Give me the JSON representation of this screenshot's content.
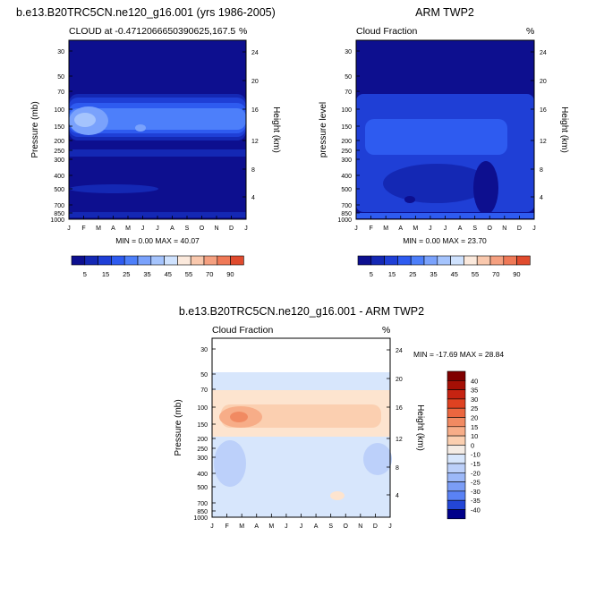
{
  "colors": {
    "frame": "#000000",
    "blue_scale": [
      "#0d0f8f",
      "#1428b4",
      "#1f3fd6",
      "#2e5bf0",
      "#4d7ffa",
      "#7aa2fc",
      "#a5c4fd",
      "#cfe2fe",
      "#fbe9dc",
      "#f9c8ad",
      "#f5a080",
      "#ef7957",
      "#e04b2e",
      "#b82617",
      "#8b0d0a"
    ],
    "diff_scale": [
      "#00008a",
      "#1226b0",
      "#2346d6",
      "#3b63ea",
      "#5a82f5",
      "#7b9df6",
      "#9cb8f8",
      "#bcd0fa",
      "#d7e6fc",
      "#f4ece5",
      "#fde4cf",
      "#fbcfb0",
      "#f7ad88",
      "#f18a62",
      "#eb663f",
      "#df4221",
      "#c62311",
      "#a50f05",
      "#800000"
    ]
  },
  "chart_data": [
    {
      "type": "heatmap",
      "panel": "model",
      "title_left": "b.e13.B20TRC5CN.ne120_g16.001 (yrs 1986-2005)",
      "subtitle_left": "CLOUD at -0.4712066650390625,167.5",
      "subtitle_right": "%",
      "ylabel": "Pressure (mb)",
      "ylabel_right": "Height (km)",
      "x_ticks": [
        "J",
        "F",
        "M",
        "A",
        "M",
        "J",
        "J",
        "A",
        "S",
        "O",
        "N",
        "D",
        "J"
      ],
      "y_ticks": [
        "30",
        "50",
        "70",
        "100",
        "150",
        "200",
        "250",
        "300",
        "400",
        "500",
        "700",
        "850",
        "1000"
      ],
      "height_ticks": [
        "24",
        "20",
        "16",
        "12",
        "8",
        "4"
      ],
      "stats": "MIN =  0.00 MAX = 40.07",
      "min": 0.0,
      "max": 40.07,
      "levels": [
        5,
        15,
        25,
        35,
        45,
        55,
        70,
        90
      ],
      "colorbar_labels": [
        "5",
        "15",
        "25",
        "35",
        "45",
        "55",
        "70",
        "90"
      ]
    },
    {
      "type": "heatmap",
      "panel": "obs",
      "title_right": "ARM TWP2",
      "subtitle_left": "Cloud Fraction",
      "subtitle_right": "%",
      "ylabel": "pressure level",
      "ylabel_right": "Height (km)",
      "x_ticks": [
        "J",
        "F",
        "M",
        "A",
        "M",
        "J",
        "J",
        "A",
        "S",
        "O",
        "N",
        "D",
        "J"
      ],
      "y_ticks": [
        "30",
        "50",
        "70",
        "100",
        "150",
        "200",
        "250",
        "300",
        "400",
        "500",
        "700",
        "850",
        "1000"
      ],
      "height_ticks": [
        "24",
        "20",
        "16",
        "12",
        "8",
        "4"
      ],
      "stats": "MIN =  0.00 MAX = 23.70",
      "min": 0.0,
      "max": 23.7,
      "colorbar_labels": [
        "5",
        "15",
        "25",
        "35",
        "45",
        "55",
        "70",
        "90"
      ]
    },
    {
      "type": "heatmap",
      "panel": "difference",
      "title": "b.e13.B20TRC5CN.ne120_g16.001 - ARM TWP2",
      "subtitle_left": "Cloud Fraction",
      "subtitle_right": "%",
      "ylabel": "Pressure (mb)",
      "ylabel_right": "Height (km)",
      "x_ticks": [
        "J",
        "F",
        "M",
        "A",
        "M",
        "J",
        "J",
        "A",
        "S",
        "O",
        "N",
        "D",
        "J"
      ],
      "y_ticks": [
        "30",
        "50",
        "70",
        "100",
        "150",
        "200",
        "250",
        "300",
        "400",
        "500",
        "700",
        "850",
        "1000"
      ],
      "height_ticks": [
        "24",
        "20",
        "16",
        "12",
        "8",
        "4"
      ],
      "stats": "MIN = -17.69 MAX =  28.84",
      "min": -17.69,
      "max": 28.84,
      "colorbar_labels": [
        "40",
        "35",
        "30",
        "25",
        "20",
        "15",
        "10",
        "0",
        "-10",
        "-15",
        "-20",
        "-25",
        "-30",
        "-35",
        "-40"
      ]
    }
  ]
}
